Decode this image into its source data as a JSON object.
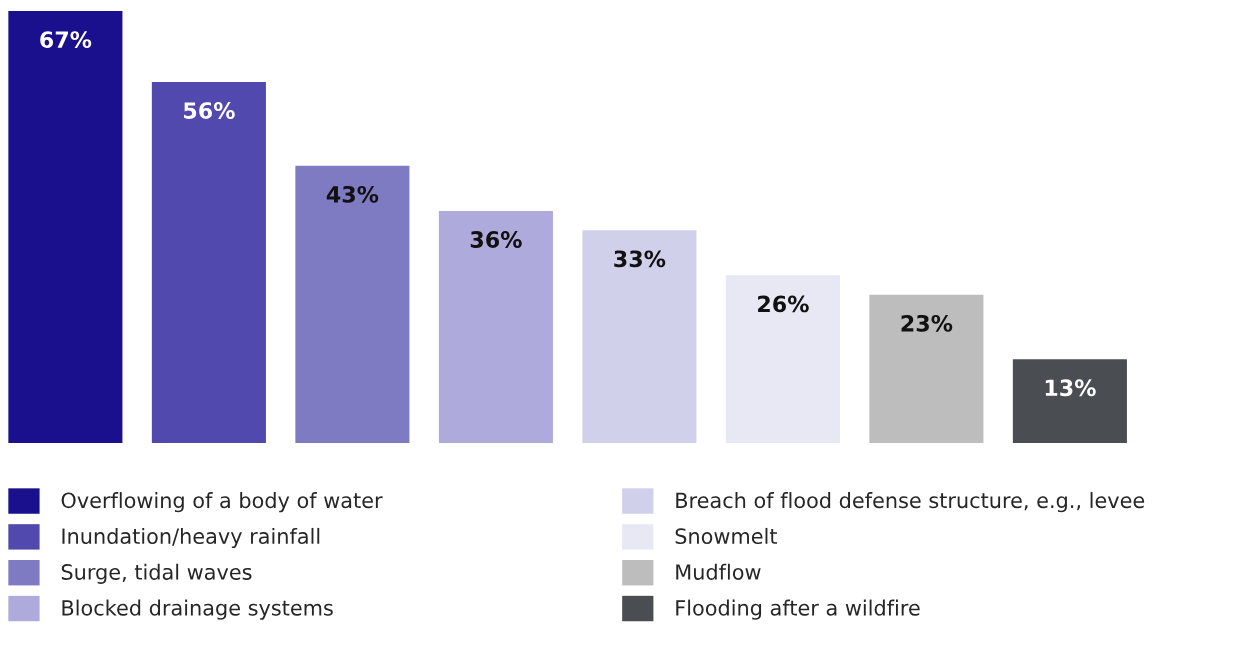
{
  "chart_data": {
    "type": "bar",
    "categories": [
      null,
      null,
      null,
      null,
      null,
      null,
      null,
      null
    ],
    "series": [
      {
        "name": "Overflowing of a body of water",
        "color": "#1a0f8c",
        "values": [
          67,
          null,
          null,
          null,
          null,
          null,
          null,
          null
        ],
        "value_labels": [
          "67%",
          null,
          null,
          null,
          null,
          null,
          null,
          null
        ]
      },
      {
        "name": "Inundation/heavy rainfall",
        "color": "#5149ad",
        "values": [
          null,
          56,
          null,
          null,
          null,
          null,
          null,
          null
        ],
        "value_labels": [
          null,
          "56%",
          null,
          null,
          null,
          null,
          null,
          null
        ]
      },
      {
        "name": "Surge, tidal waves",
        "color": "#7f7bc3",
        "values": [
          null,
          null,
          43,
          null,
          null,
          null,
          null,
          null
        ],
        "value_labels": [
          null,
          null,
          "43%",
          null,
          null,
          null,
          null,
          null
        ]
      },
      {
        "name": "Blocked drainage systems",
        "color": "#aeaadb",
        "values": [
          null,
          null,
          null,
          36,
          null,
          null,
          null,
          null
        ],
        "value_labels": [
          null,
          null,
          null,
          "36%",
          null,
          null,
          null,
          null
        ]
      },
      {
        "name": "Breach of flood defense structure, e.g., levee",
        "color": "#d1d0ea",
        "values": [
          null,
          null,
          null,
          null,
          33,
          null,
          null,
          null
        ],
        "value_labels": [
          null,
          null,
          null,
          null,
          "33%",
          null,
          null,
          null
        ]
      },
      {
        "name": "Snowmelt",
        "color": "#e8e7f4",
        "values": [
          null,
          null,
          null,
          null,
          null,
          26,
          null,
          null
        ],
        "value_labels": [
          null,
          null,
          null,
          null,
          null,
          "26%",
          null,
          null
        ]
      },
      {
        "name": "Mudflow",
        "color": "#bdbdbd",
        "values": [
          null,
          null,
          null,
          null,
          null,
          null,
          23,
          null
        ],
        "value_labels": [
          null,
          null,
          null,
          null,
          null,
          null,
          "23%",
          null
        ]
      },
      {
        "name": "Flooding after a wildfire",
        "color": "#4a4d52",
        "values": [
          null,
          null,
          null,
          null,
          null,
          null,
          null,
          13
        ],
        "value_labels": [
          null,
          null,
          null,
          null,
          null,
          null,
          null,
          "13%"
        ]
      }
    ],
    "stacked": true,
    "tick_labels": false,
    "legend": "bottom"
  }
}
